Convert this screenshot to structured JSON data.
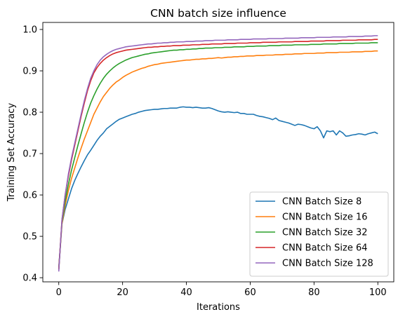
{
  "chart_data": {
    "type": "line",
    "title": "CNN batch size influence",
    "xlabel": "Iterations",
    "ylabel": "Training Set Accuracy",
    "xlim": [
      -5,
      105
    ],
    "ylim": [
      0.39,
      1.017
    ],
    "xticks": [
      0,
      20,
      40,
      60,
      80,
      100
    ],
    "yticks": [
      0.4,
      0.5,
      0.6,
      0.7,
      0.8,
      0.9,
      1.0
    ],
    "grid": false,
    "legend_position": "lower-right",
    "series": [
      {
        "name": "CNN Batch Size 8",
        "color": "#1f77b4",
        "values": [
          0.425,
          0.53,
          0.565,
          0.59,
          0.615,
          0.635,
          0.652,
          0.668,
          0.683,
          0.697,
          0.708,
          0.72,
          0.732,
          0.742,
          0.75,
          0.76,
          0.766,
          0.772,
          0.778,
          0.783,
          0.786,
          0.789,
          0.792,
          0.795,
          0.797,
          0.8,
          0.802,
          0.804,
          0.805,
          0.806,
          0.807,
          0.807,
          0.808,
          0.809,
          0.809,
          0.81,
          0.81,
          0.81,
          0.812,
          0.813,
          0.812,
          0.812,
          0.811,
          0.812,
          0.811,
          0.81,
          0.81,
          0.811,
          0.809,
          0.806,
          0.803,
          0.801,
          0.8,
          0.801,
          0.8,
          0.799,
          0.8,
          0.797,
          0.797,
          0.795,
          0.795,
          0.795,
          0.792,
          0.79,
          0.789,
          0.787,
          0.785,
          0.782,
          0.786,
          0.78,
          0.778,
          0.776,
          0.774,
          0.771,
          0.768,
          0.771,
          0.77,
          0.768,
          0.765,
          0.762,
          0.76,
          0.765,
          0.755,
          0.738,
          0.755,
          0.753,
          0.755,
          0.745,
          0.755,
          0.75,
          0.742,
          0.743,
          0.745,
          0.746,
          0.748,
          0.747,
          0.745,
          0.748,
          0.75,
          0.752,
          0.748
        ]
      },
      {
        "name": "CNN Batch Size 16",
        "color": "#ff7f0e",
        "values": [
          0.42,
          0.53,
          0.575,
          0.61,
          0.64,
          0.665,
          0.69,
          0.713,
          0.735,
          0.755,
          0.775,
          0.795,
          0.81,
          0.825,
          0.838,
          0.848,
          0.858,
          0.866,
          0.873,
          0.878,
          0.884,
          0.889,
          0.893,
          0.897,
          0.9,
          0.903,
          0.906,
          0.908,
          0.911,
          0.913,
          0.915,
          0.916,
          0.918,
          0.919,
          0.92,
          0.921,
          0.922,
          0.923,
          0.924,
          0.925,
          0.926,
          0.926,
          0.927,
          0.928,
          0.928,
          0.929,
          0.929,
          0.93,
          0.93,
          0.931,
          0.932,
          0.931,
          0.932,
          0.933,
          0.933,
          0.934,
          0.934,
          0.935,
          0.935,
          0.936,
          0.936,
          0.936,
          0.937,
          0.937,
          0.937,
          0.938,
          0.938,
          0.938,
          0.939,
          0.939,
          0.939,
          0.94,
          0.94,
          0.94,
          0.941,
          0.941,
          0.941,
          0.942,
          0.942,
          0.942,
          0.942,
          0.943,
          0.943,
          0.943,
          0.944,
          0.944,
          0.944,
          0.944,
          0.945,
          0.945,
          0.945,
          0.945,
          0.946,
          0.946,
          0.946,
          0.946,
          0.947,
          0.947,
          0.947,
          0.948,
          0.948
        ]
      },
      {
        "name": "CNN Batch Size 32",
        "color": "#2ca02c",
        "values": [
          0.42,
          0.535,
          0.585,
          0.625,
          0.66,
          0.69,
          0.72,
          0.748,
          0.775,
          0.8,
          0.822,
          0.84,
          0.856,
          0.87,
          0.882,
          0.892,
          0.9,
          0.907,
          0.913,
          0.918,
          0.922,
          0.926,
          0.929,
          0.932,
          0.934,
          0.936,
          0.938,
          0.94,
          0.941,
          0.943,
          0.944,
          0.945,
          0.946,
          0.947,
          0.948,
          0.949,
          0.95,
          0.95,
          0.951,
          0.951,
          0.952,
          0.952,
          0.953,
          0.953,
          0.954,
          0.954,
          0.955,
          0.955,
          0.955,
          0.956,
          0.956,
          0.956,
          0.957,
          0.957,
          0.957,
          0.958,
          0.958,
          0.958,
          0.958,
          0.959,
          0.959,
          0.959,
          0.96,
          0.96,
          0.96,
          0.96,
          0.961,
          0.961,
          0.961,
          0.961,
          0.962,
          0.962,
          0.962,
          0.962,
          0.963,
          0.963,
          0.963,
          0.963,
          0.963,
          0.964,
          0.964,
          0.964,
          0.964,
          0.965,
          0.965,
          0.965,
          0.965,
          0.965,
          0.966,
          0.966,
          0.966,
          0.966,
          0.966,
          0.967,
          0.967,
          0.967,
          0.967,
          0.967,
          0.968,
          0.968,
          0.968
        ]
      },
      {
        "name": "CNN Batch Size 64",
        "color": "#d62728",
        "values": [
          0.42,
          0.54,
          0.6,
          0.645,
          0.685,
          0.72,
          0.755,
          0.79,
          0.822,
          0.852,
          0.876,
          0.895,
          0.908,
          0.918,
          0.926,
          0.932,
          0.937,
          0.941,
          0.944,
          0.946,
          0.948,
          0.95,
          0.951,
          0.952,
          0.953,
          0.954,
          0.955,
          0.956,
          0.957,
          0.957,
          0.958,
          0.958,
          0.959,
          0.959,
          0.96,
          0.96,
          0.961,
          0.961,
          0.961,
          0.962,
          0.962,
          0.962,
          0.963,
          0.963,
          0.963,
          0.964,
          0.964,
          0.964,
          0.965,
          0.965,
          0.965,
          0.965,
          0.966,
          0.966,
          0.966,
          0.966,
          0.967,
          0.967,
          0.967,
          0.967,
          0.968,
          0.968,
          0.968,
          0.968,
          0.969,
          0.969,
          0.969,
          0.969,
          0.969,
          0.97,
          0.97,
          0.97,
          0.97,
          0.97,
          0.971,
          0.971,
          0.971,
          0.971,
          0.971,
          0.972,
          0.972,
          0.972,
          0.972,
          0.972,
          0.973,
          0.973,
          0.973,
          0.973,
          0.973,
          0.974,
          0.974,
          0.974,
          0.974,
          0.974,
          0.975,
          0.975,
          0.975,
          0.975,
          0.975,
          0.976,
          0.976
        ]
      },
      {
        "name": "CNN Batch Size 128",
        "color": "#9467bd",
        "values": [
          0.415,
          0.54,
          0.6,
          0.65,
          0.69,
          0.725,
          0.76,
          0.795,
          0.828,
          0.857,
          0.882,
          0.9,
          0.915,
          0.926,
          0.934,
          0.94,
          0.945,
          0.949,
          0.952,
          0.954,
          0.956,
          0.958,
          0.959,
          0.96,
          0.961,
          0.962,
          0.963,
          0.964,
          0.965,
          0.965,
          0.966,
          0.967,
          0.967,
          0.968,
          0.968,
          0.969,
          0.969,
          0.97,
          0.97,
          0.97,
          0.971,
          0.971,
          0.971,
          0.972,
          0.972,
          0.972,
          0.973,
          0.973,
          0.973,
          0.974,
          0.974,
          0.974,
          0.974,
          0.975,
          0.975,
          0.975,
          0.975,
          0.976,
          0.976,
          0.976,
          0.976,
          0.977,
          0.977,
          0.977,
          0.977,
          0.977,
          0.978,
          0.978,
          0.978,
          0.978,
          0.978,
          0.979,
          0.979,
          0.979,
          0.979,
          0.979,
          0.98,
          0.98,
          0.98,
          0.98,
          0.98,
          0.981,
          0.981,
          0.981,
          0.981,
          0.981,
          0.982,
          0.982,
          0.982,
          0.982,
          0.982,
          0.983,
          0.983,
          0.983,
          0.983,
          0.983,
          0.984,
          0.984,
          0.984,
          0.985,
          0.985
        ]
      }
    ]
  }
}
